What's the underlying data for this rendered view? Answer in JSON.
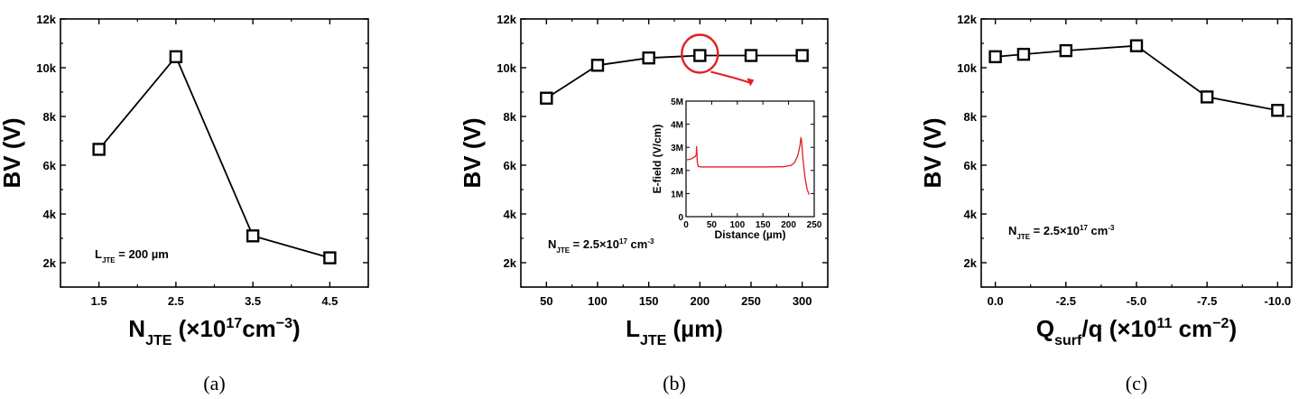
{
  "chart_data": [
    {
      "type": "line",
      "caption": "(a)",
      "x": [
        1.5,
        2.5,
        3.5,
        4.5
      ],
      "y": [
        6650,
        10450,
        3100,
        2200
      ],
      "xticks": [
        "1.5",
        "2.5",
        "3.5",
        "4.5"
      ],
      "xlim": [
        1.0,
        5.0
      ],
      "yticks": [
        "2k",
        "4k",
        "6k",
        "8k",
        "10k",
        "12k"
      ],
      "ylim": [
        1000,
        12000
      ],
      "ylabel": "BV (V)",
      "xlabel": {
        "main": "N",
        "sub": "JTE",
        "rest": " (×10",
        "sup": "17",
        "rest2": "cm",
        "sup2": "−3",
        "end": ")"
      },
      "annotation": {
        "main": "L",
        "sub": "JTE",
        "rest": " = 200 µm"
      }
    },
    {
      "type": "line",
      "caption": "(b)",
      "x": [
        50,
        100,
        150,
        200,
        250,
        300
      ],
      "y": [
        8750,
        10100,
        10400,
        10500,
        10500,
        10500
      ],
      "xticks": [
        "50",
        "100",
        "150",
        "200",
        "250",
        "300"
      ],
      "xlim": [
        25,
        325
      ],
      "yticks": [
        "2k",
        "4k",
        "6k",
        "8k",
        "10k",
        "12k"
      ],
      "ylim": [
        1000,
        12000
      ],
      "ylabel": "BV (V)",
      "xlabel": {
        "main": "L",
        "sub": "JTE",
        "rest": " (µm)"
      },
      "annotation": {
        "main": "N",
        "sub": "JTE",
        "rest": " = 2.5×10",
        "sup": "17",
        "rest2": " cm",
        "sup2": "-3"
      },
      "highlight_x": 200,
      "highlight_color": "#e02020",
      "inset": {
        "xlabel": "Distance (µm)",
        "ylabel": "E-field (V/cm)",
        "xticks": [
          "0",
          "50",
          "100",
          "150",
          "200",
          "250"
        ],
        "xlim": [
          0,
          250
        ],
        "yticks": [
          "0",
          "1M",
          "2M",
          "3M",
          "4M",
          "5M"
        ],
        "ylim": [
          0,
          5000000
        ],
        "line_color": "#e02020",
        "x": [
          0,
          10,
          18,
          20,
          20.5,
          22,
          24,
          30,
          50,
          100,
          150,
          190,
          205,
          212,
          218,
          222,
          224,
          225,
          226,
          228,
          232,
          236,
          240
        ],
        "y": [
          2450000,
          2500000,
          2600000,
          2700000,
          3050000,
          2350000,
          2170000,
          2150000,
          2150000,
          2150000,
          2150000,
          2160000,
          2220000,
          2350000,
          2650000,
          3050000,
          3400000,
          3350000,
          3100000,
          2500000,
          1700000,
          1200000,
          950000
        ]
      }
    },
    {
      "type": "line",
      "caption": "(c)",
      "x": [
        0.0,
        -1.0,
        -2.5,
        -5.0,
        -7.5,
        -10.0
      ],
      "y": [
        10450,
        10550,
        10700,
        10900,
        8800,
        8250
      ],
      "xticks": [
        "0.0",
        "-2.5",
        "-5.0",
        "-7.5",
        "-10.0"
      ],
      "xtick_values": [
        0.0,
        -2.5,
        -5.0,
        -7.5,
        -10.0
      ],
      "xlim": [
        0.5,
        -10.5
      ],
      "yticks": [
        "2k",
        "4k",
        "6k",
        "8k",
        "10k",
        "12k"
      ],
      "ylim": [
        1000,
        12000
      ],
      "ylabel": "BV (V)",
      "xlabel": {
        "main": "Q",
        "sub": "surf",
        "rest": "/q (×10",
        "sup": "11",
        "rest2": " cm",
        "sup2": "−2",
        "end": ")"
      },
      "annotation": {
        "main": "N",
        "sub": "JTE",
        "rest": " = 2.5×10",
        "sup": "17",
        "rest2": " cm",
        "sup2": "-3"
      }
    }
  ]
}
